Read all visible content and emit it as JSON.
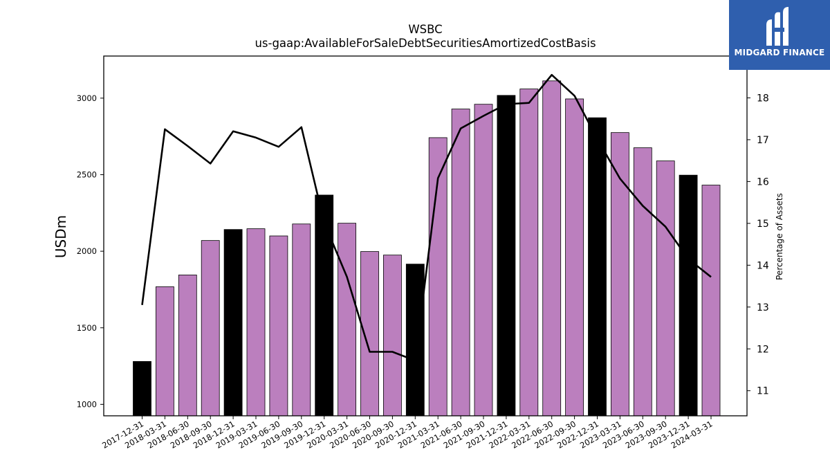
{
  "chart_data": {
    "type": "bar",
    "title": "WSBC",
    "subtitle": "us-gaap:AvailableForSaleDebtSecuritiesAmortizedCostBasis",
    "ylabel": "USDm",
    "y2label": "Percentage of Assets",
    "ylim": [
      925,
      3275
    ],
    "y2lim": [
      10.4,
      19.0
    ],
    "yticks": [
      1000,
      1500,
      2000,
      2500,
      3000
    ],
    "y2ticks": [
      11,
      12,
      13,
      14,
      15,
      16,
      17,
      18
    ],
    "categories": [
      "2017-12-31",
      "2018-03-31",
      "2018-06-30",
      "2018-09-30",
      "2018-12-31",
      "2019-03-31",
      "2019-06-30",
      "2019-09-30",
      "2019-12-31",
      "2020-03-31",
      "2020-06-30",
      "2020-09-30",
      "2020-12-31",
      "2021-03-31",
      "2021-06-30",
      "2021-09-30",
      "2021-12-31",
      "2022-03-31",
      "2022-06-30",
      "2022-09-30",
      "2022-12-31",
      "2023-03-31",
      "2023-06-30",
      "2023-09-30",
      "2023-12-31",
      "2024-03-31"
    ],
    "series": [
      {
        "values": [
          1280,
          1768,
          1845,
          2070,
          2142,
          2147,
          2100,
          2178,
          2367,
          2183,
          1998,
          1975,
          1916,
          2742,
          2929,
          2960,
          3018,
          3060,
          3113,
          2995,
          2872,
          2775,
          2676,
          2590,
          2497,
          2432
        ]
      },
      {
        "axis": "right",
        "values": [
          13.05,
          17.25,
          16.85,
          16.43,
          17.2,
          17.05,
          16.83,
          17.3,
          15.02,
          13.72,
          11.93,
          11.93,
          11.72,
          16.08,
          17.27,
          17.57,
          17.85,
          17.88,
          18.55,
          18.05,
          17.02,
          16.07,
          15.42,
          14.92,
          14.15,
          13.72
        ]
      }
    ],
    "bar_colors": [
      "#000000",
      "#bb7fbe",
      "#bb7fbe",
      "#bb7fbe",
      "#000000",
      "#bb7fbe",
      "#bb7fbe",
      "#bb7fbe",
      "#000000",
      "#bb7fbe",
      "#bb7fbe",
      "#bb7fbe",
      "#000000",
      "#bb7fbe",
      "#bb7fbe",
      "#bb7fbe",
      "#000000",
      "#bb7fbe",
      "#bb7fbe",
      "#bb7fbe",
      "#000000",
      "#bb7fbe",
      "#bb7fbe",
      "#bb7fbe",
      "#000000",
      "#bb7fbe"
    ],
    "line_color": "#000000",
    "legend": "none",
    "grid": false
  },
  "logo": {
    "text": "MIDGARD FINANCE",
    "icon": "midgard-logo-icon",
    "background": "#2f5fae"
  }
}
